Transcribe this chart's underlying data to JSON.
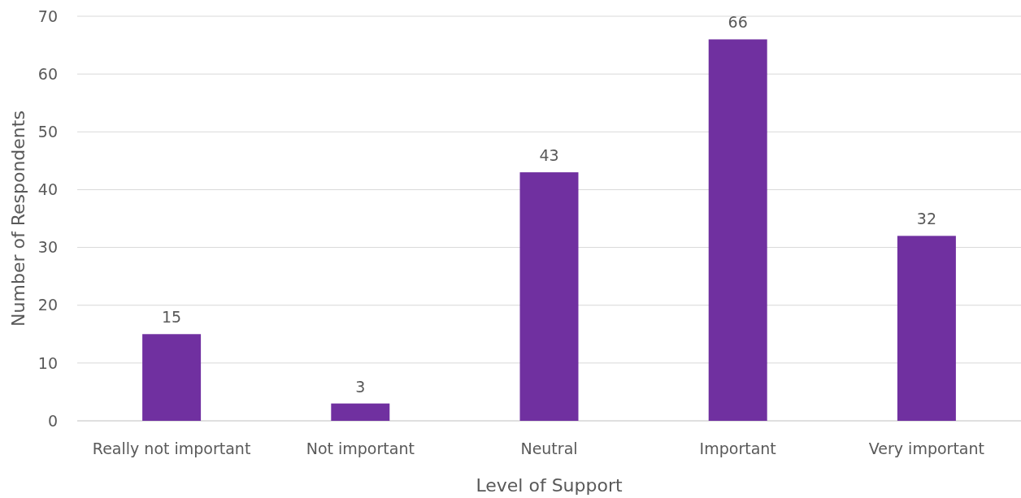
{
  "chart_data": {
    "type": "bar",
    "xlabel": "Level of Support",
    "ylabel": "Number of Respondents",
    "categories": [
      "Really not important",
      "Not important",
      "Neutral",
      "Important",
      "Very important"
    ],
    "values": [
      15,
      3,
      43,
      66,
      32
    ],
    "color": "#7030a0",
    "ylim": [
      0,
      70
    ],
    "yticks": [
      0,
      10,
      20,
      30,
      40,
      50,
      60,
      70
    ],
    "grid": "y",
    "data_labels": true
  }
}
